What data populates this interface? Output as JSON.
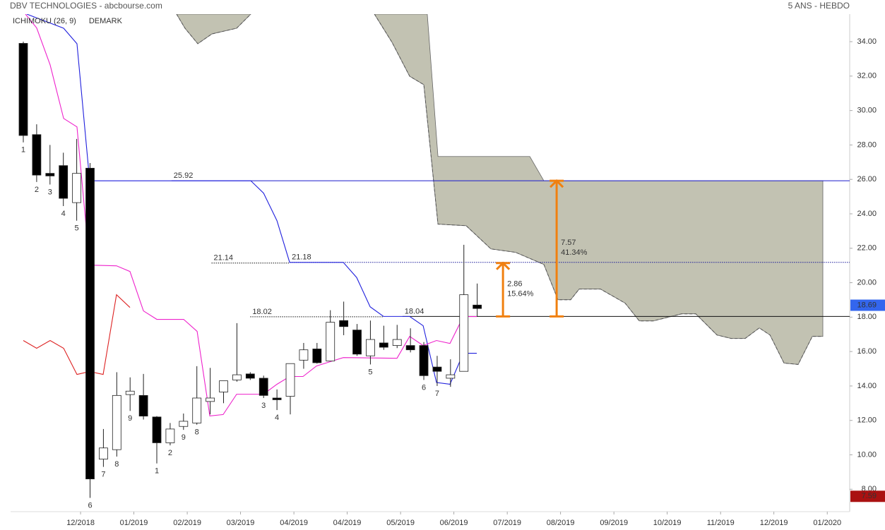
{
  "chart_data": {
    "type": "candlestick",
    "title": "DBV TECHNOLOGIES - abcbourse.com",
    "period": "5 ANS - HEBDO",
    "indicators": [
      {
        "text": "ICHIMOKU (26, 9)",
        "color": "#1a1acc"
      },
      {
        "text": "DEMARK",
        "color": "#1a8a1a"
      }
    ],
    "x": [
      0,
      1,
      2,
      3,
      4,
      5,
      6,
      7,
      8,
      9,
      10,
      11,
      12,
      13,
      14,
      15,
      16,
      17,
      18,
      19,
      20,
      21,
      22,
      23,
      24,
      25,
      26,
      27,
      28,
      29,
      30,
      31,
      32,
      33,
      34
    ],
    "open": [
      33.9,
      28.6,
      26.35,
      26.8,
      24.65,
      26.65,
      9.75,
      10.3,
      13.5,
      13.45,
      12.2,
      10.7,
      11.65,
      11.85,
      13.1,
      13.65,
      14.35,
      14.7,
      14.45,
      13.3,
      13.4,
      15.5,
      16.15,
      15.45,
      17.8,
      17.25,
      15.75,
      16.5,
      16.35,
      16.35,
      16.35,
      15.1,
      14.45,
      14.85,
      18.7
    ],
    "high": [
      34.0,
      29.2,
      28.0,
      27.55,
      28.35,
      26.95,
      11.5,
      14.8,
      14.5,
      14.7,
      12.25,
      11.85,
      12.4,
      15.15,
      15.05,
      14.3,
      17.65,
      14.8,
      14.6,
      13.8,
      15.3,
      16.5,
      16.5,
      18.4,
      18.9,
      17.6,
      17.8,
      17.5,
      17.55,
      17.35,
      16.55,
      15.75,
      15.55,
      22.2,
      19.95
    ],
    "low": [
      28.15,
      25.85,
      25.7,
      24.45,
      23.6,
      7.5,
      9.3,
      9.9,
      12.55,
      12.05,
      9.5,
      10.55,
      11.45,
      11.75,
      12.35,
      13.0,
      14.25,
      14.35,
      13.3,
      12.6,
      12.35,
      15.0,
      15.3,
      15.45,
      16.95,
      15.75,
      15.25,
      16.1,
      16.2,
      15.95,
      14.35,
      14.0,
      13.95,
      14.85,
      18.05
    ],
    "close": [
      28.55,
      26.25,
      26.2,
      24.9,
      26.35,
      8.6,
      10.4,
      13.45,
      13.7,
      12.25,
      10.7,
      11.5,
      11.95,
      13.3,
      13.3,
      14.3,
      14.65,
      14.45,
      13.45,
      13.2,
      15.3,
      16.1,
      15.35,
      17.7,
      17.45,
      15.85,
      16.7,
      16.25,
      16.7,
      16.1,
      14.6,
      14.85,
      14.65,
      19.3,
      18.5
    ],
    "lines": [
      {
        "color": "#2020dd",
        "x": [
          0.26,
          3.02,
          4.02,
          4.97,
          17.04,
          18.0,
          19.0,
          19.95,
          23.97,
          24.97,
          25.98,
          26.98,
          28.94,
          29.95,
          30.95,
          31.96,
          32.96,
          33.97
        ],
        "values": [
          35.6,
          34.78,
          33.88,
          25.92,
          25.92,
          25.2,
          23.6,
          21.18,
          21.18,
          20.3,
          18.6,
          18.04,
          18.04,
          17.5,
          14.2,
          14.1,
          15.9,
          15.9
        ]
      },
      {
        "color": "#ee22cc",
        "x": [
          0.16,
          1.0,
          2.01,
          3.02,
          4.02,
          4.97,
          6.98,
          7.99,
          9.0,
          10.0,
          12.01,
          13.02,
          13.97,
          14.97,
          15.98,
          17.99,
          19.0,
          19.95,
          20.95,
          21.96,
          23.97,
          27.99,
          28.94,
          29.95,
          30.95,
          31.96,
          32.96,
          33.97
        ],
        "values": [
          35.6,
          34.8,
          32.65,
          29.54,
          29.05,
          21.02,
          20.98,
          20.65,
          18.36,
          17.87,
          17.87,
          17.17,
          12.26,
          12.34,
          13.52,
          13.52,
          14.1,
          14.55,
          14.55,
          15.16,
          15.65,
          15.61,
          16.88,
          16.35,
          16.64,
          16.47,
          18.03,
          18.03
        ]
      },
      {
        "color": "#dd2222",
        "x": [
          0,
          1.0,
          2.01,
          3.02,
          4.02,
          4.97,
          5.98,
          6.98,
          7.99
        ],
        "values": [
          16.64,
          16.19,
          16.64,
          16.19,
          14.67,
          14.84,
          14.67,
          19.3,
          18.56
        ]
      }
    ],
    "clouds": [
      {
        "color": "#c2c2b2",
        "upper": {
          "x": [
            11.48,
            17.04
          ],
          "values": [
            35.6,
            35.6
          ]
        },
        "lower": {
          "x": [
            11.48,
            12.11,
            13.07,
            14.13,
            15.98,
            17.04
          ],
          "values": [
            35.6,
            34.78,
            33.88,
            34.45,
            34.78,
            35.6
          ]
        }
      },
      {
        "color": "#c2c2b2",
        "upper": {
          "x": [
            26.3,
            30.26,
            31.06,
            37.94,
            38.99,
            59.89
          ],
          "values": [
            35.6,
            35.6,
            27.33,
            27.33,
            25.92,
            25.92
          ]
        },
        "lower": {
          "x": [
            26.3,
            27.62,
            28.94,
            30.0,
            31.06,
            33.17,
            35.03,
            36.88,
            38.99,
            40.05,
            41.0,
            41.64,
            43.23,
            45.08,
            46.14,
            47.2,
            49.31,
            50.37,
            51.96,
            53.02,
            54.07,
            55.13,
            55.93,
            56.98,
            58.04,
            59.1,
            59.89
          ],
          "values": [
            35.6,
            33.96,
            31.99,
            31.5,
            23.4,
            23.31,
            21.96,
            21.76,
            21.06,
            19.01,
            19.01,
            19.63,
            19.63,
            18.81,
            17.78,
            17.78,
            18.19,
            18.19,
            16.96,
            16.76,
            16.76,
            17.37,
            16.96,
            15.33,
            15.25,
            16.88,
            16.88
          ]
        }
      }
    ],
    "levels": [
      {
        "value": 25.92,
        "from": 11.1,
        "color": "#1a1acc",
        "label_color": "#1a1acc",
        "dashed": false
      },
      {
        "value": 21.14,
        "from": 14.1,
        "to": 19.95,
        "color": "#111111",
        "label_color": "#111111",
        "dashed": true
      },
      {
        "value": 21.18,
        "from": 19.95,
        "color": "#1a1a99",
        "label_color": "#1a1acc",
        "dashed": true
      },
      {
        "value": 18.02,
        "from": 17.0,
        "to": 27.0,
        "color": "#111111",
        "label_color": "#111111",
        "dashed": true
      },
      {
        "value": 18.04,
        "from": 28.4,
        "color": "#111111",
        "label_color": "#1a1acc",
        "dashed": false
      }
    ],
    "arrows": [
      {
        "x": 35.93,
        "from": 18.04,
        "to": 21.14,
        "labels": [
          "2.86",
          "15.64%"
        ],
        "color": "#f08010"
      },
      {
        "x": 39.95,
        "from": 18.04,
        "to": 25.92,
        "labels": [
          "7.57",
          "41.34%"
        ],
        "color": "#f08010"
      }
    ],
    "demark": [
      {
        "x": 0,
        "text": "1",
        "color": "#1a8a1a"
      },
      {
        "x": 1,
        "text": "2",
        "color": "#1a8a1a"
      },
      {
        "x": 2,
        "text": "3",
        "color": "#1a8a1a"
      },
      {
        "x": 3,
        "text": "4",
        "color": "#1a8a1a"
      },
      {
        "x": 4,
        "text": "5",
        "color": "#1a8a1a"
      },
      {
        "x": 5,
        "text": "6",
        "color": "#1a8a1a"
      },
      {
        "x": 6,
        "text": "7",
        "color": "#1a8a1a"
      },
      {
        "x": 7,
        "text": "8",
        "color": "#1a8a1a"
      },
      {
        "x": 8,
        "text": "9",
        "color": "#1a8a1a"
      },
      {
        "x": 10,
        "text": "1",
        "color": "#d42020"
      },
      {
        "x": 11,
        "text": "2",
        "color": "#d42020"
      },
      {
        "x": 12,
        "text": "9",
        "color": "#222222"
      },
      {
        "x": 13,
        "text": "8",
        "color": "#d42020"
      },
      {
        "x": 18,
        "text": "3",
        "color": "#d42020"
      },
      {
        "x": 19,
        "text": "4",
        "color": "#d42020"
      },
      {
        "x": 26,
        "text": "5",
        "color": "#d42020"
      },
      {
        "x": 30,
        "text": "6",
        "color": "#d42020"
      },
      {
        "x": 31,
        "text": "7",
        "color": "#d42020"
      }
    ],
    "markers": [
      {
        "value": 18.69,
        "color": "#3366ee"
      },
      {
        "value": 7.59,
        "color": "#aa1111"
      }
    ],
    "xlim": [
      -0.952,
      61.9
    ],
    "xticks": [
      {
        "value": 4.29,
        "label": "12/2018"
      },
      {
        "value": 8.28,
        "label": "01/2019"
      },
      {
        "value": 12.28,
        "label": "02/2019"
      },
      {
        "value": 16.27,
        "label": "03/2019"
      },
      {
        "value": 20.27,
        "label": "04/2019"
      },
      {
        "value": 24.26,
        "label": "04/2019"
      },
      {
        "value": 28.26,
        "label": "05/2019"
      },
      {
        "value": 32.25,
        "label": "06/2019"
      },
      {
        "value": 36.25,
        "label": "07/2019"
      },
      {
        "value": 40.24,
        "label": "08/2019"
      },
      {
        "value": 44.24,
        "label": "09/2019"
      },
      {
        "value": 48.23,
        "label": "10/2019"
      },
      {
        "value": 52.23,
        "label": "11/2019"
      },
      {
        "value": 56.22,
        "label": "12/2019"
      },
      {
        "value": 60.22,
        "label": "01/2020"
      }
    ],
    "ylim": [
      6.7,
      35.6
    ],
    "yticks": [
      {
        "value": 8,
        "label": "8.00"
      },
      {
        "value": 10,
        "label": "10.00"
      },
      {
        "value": 12,
        "label": "12.00"
      },
      {
        "value": 14,
        "label": "14.00"
      },
      {
        "value": 16,
        "label": "16.00"
      },
      {
        "value": 18,
        "label": "18.00"
      },
      {
        "value": 20,
        "label": "20.00"
      },
      {
        "value": 22,
        "label": "22.00"
      },
      {
        "value": 24,
        "label": "24.00"
      },
      {
        "value": 26,
        "label": "26.00"
      },
      {
        "value": 28,
        "label": "28.00"
      },
      {
        "value": 30,
        "label": "30.00"
      },
      {
        "value": 32,
        "label": "32.00"
      },
      {
        "value": 34,
        "label": "34.00"
      }
    ]
  }
}
